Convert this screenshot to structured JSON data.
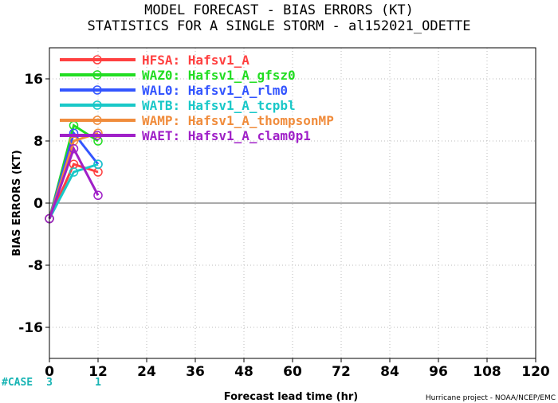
{
  "chart_data": {
    "type": "line",
    "title_line1": "MODEL FORECAST - BIAS ERRORS (KT)",
    "title_line2": "STATISTICS FOR A SINGLE STORM - al152021_ODETTE",
    "xlabel": "Forecast lead time (hr)",
    "ylabel": "BIAS ERRORS (KT)",
    "credit": "Hurricane project - NOAA/NCEP/EMC",
    "xlim": [
      0,
      120
    ],
    "ylim": [
      -20,
      20
    ],
    "x_ticks": [
      0,
      12,
      24,
      36,
      48,
      60,
      72,
      84,
      96,
      108,
      120
    ],
    "y_ticks": [
      -16,
      -8,
      0,
      8,
      16
    ],
    "grid": true,
    "legend_position": "top-left",
    "case_label": "#CASE",
    "case_counts": [
      {
        "x": 0,
        "value": "3"
      },
      {
        "x": 12,
        "value": "1"
      }
    ],
    "series": [
      {
        "code": "HFSA:",
        "name": "Hafsv1_A",
        "color": "#ff4040",
        "x": [
          0,
          6,
          12
        ],
        "y": [
          -2,
          5,
          4
        ]
      },
      {
        "code": "WAZ0:",
        "name": "Hafsv1_A_gfsz0",
        "color": "#22dd22",
        "x": [
          0,
          6,
          12
        ],
        "y": [
          -2,
          10,
          8
        ]
      },
      {
        "code": "WAL0:",
        "name": "Hafsv1_A_rlm0",
        "color": "#3355ff",
        "x": [
          0,
          6,
          12
        ],
        "y": [
          -2,
          9,
          5
        ]
      },
      {
        "code": "WATB:",
        "name": "Hafsv1_A_tcpbl",
        "color": "#19c8c8",
        "x": [
          0,
          6,
          12
        ],
        "y": [
          -2,
          4,
          5
        ]
      },
      {
        "code": "WAMP:",
        "name": "Hafsv1_A_thompsonMP",
        "color": "#f08c3c",
        "x": [
          0,
          6,
          12
        ],
        "y": [
          -2,
          8,
          9
        ]
      },
      {
        "code": "WAET:",
        "name": "Hafsv1_A_clam0p1",
        "color": "#a020c8",
        "x": [
          0,
          6,
          12
        ],
        "y": [
          -2,
          7,
          1
        ]
      }
    ]
  }
}
